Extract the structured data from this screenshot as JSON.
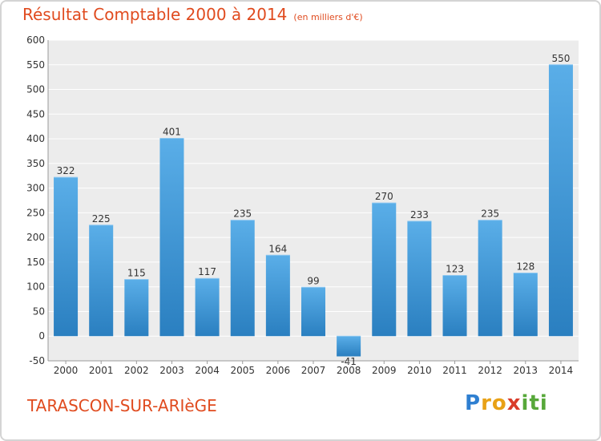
{
  "header": {
    "title": "Résultat Comptable 2000 à 2014",
    "unit": "(en milliers d'€)"
  },
  "footer": {
    "city": "TARASCON-SUR-ARIèGE",
    "logo_parts": [
      "P",
      "ro",
      "x",
      "iti"
    ]
  },
  "colors": {
    "title": "#e04b1f",
    "bar_top": "#5aaee8",
    "bar_bottom": "#2a7fc0",
    "grid": "#dcdcdc",
    "plot_bg": "#ececec"
  },
  "chart_data": {
    "type": "bar",
    "categories": [
      "2000",
      "2001",
      "2002",
      "2003",
      "2004",
      "2005",
      "2006",
      "2007",
      "2008",
      "2009",
      "2010",
      "2011",
      "2012",
      "2013",
      "2014"
    ],
    "values": [
      322,
      225,
      115,
      401,
      117,
      235,
      164,
      99,
      -41,
      270,
      233,
      123,
      235,
      128,
      550
    ],
    "data_labels": [
      "322",
      "225",
      "115",
      "401",
      "117",
      "235",
      "164",
      "99",
      "-41",
      "270",
      "233",
      "123",
      "235",
      "128",
      "550"
    ],
    "title": "Résultat Comptable 2000 à 2014",
    "xlabel": "",
    "ylabel": "",
    "ylim": [
      -50,
      600
    ],
    "yticks": [
      -50,
      0,
      50,
      100,
      150,
      200,
      250,
      300,
      350,
      400,
      450,
      500,
      550,
      600
    ],
    "grid": true,
    "legend": "none"
  }
}
